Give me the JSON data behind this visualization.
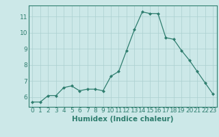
{
  "x": [
    0,
    1,
    2,
    3,
    4,
    5,
    6,
    7,
    8,
    9,
    10,
    11,
    12,
    13,
    14,
    15,
    16,
    17,
    18,
    19,
    20,
    21,
    22,
    23
  ],
  "y": [
    5.7,
    5.7,
    6.1,
    6.1,
    6.6,
    6.7,
    6.4,
    6.5,
    6.5,
    6.4,
    7.3,
    7.6,
    8.9,
    10.2,
    11.3,
    11.2,
    11.2,
    9.7,
    9.6,
    8.9,
    8.3,
    7.6,
    6.9,
    6.2
  ],
  "line_color": "#2e7d6e",
  "bg_color": "#cce8e8",
  "grid_color": "#aacfcf",
  "xlabel": "Humidex (Indice chaleur)",
  "ylim": [
    5.4,
    11.7
  ],
  "xlim": [
    -0.5,
    23.5
  ],
  "yticks": [
    6,
    7,
    8,
    9,
    10,
    11
  ],
  "xticks": [
    0,
    1,
    2,
    3,
    4,
    5,
    6,
    7,
    8,
    9,
    10,
    11,
    12,
    13,
    14,
    15,
    16,
    17,
    18,
    19,
    20,
    21,
    22,
    23
  ],
  "tick_label_fontsize": 6.5,
  "xlabel_fontsize": 7.5
}
